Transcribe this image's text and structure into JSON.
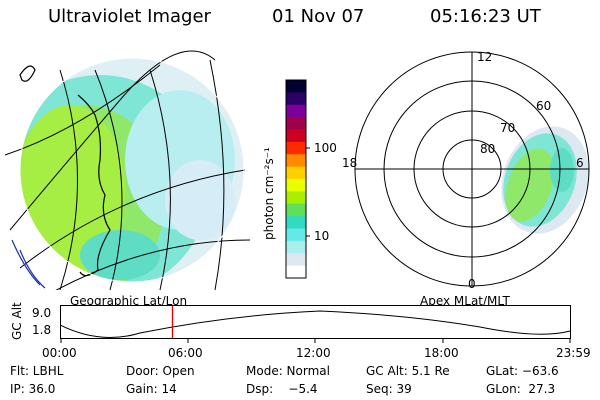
{
  "header": {
    "title": "Ultraviolet Imager",
    "date": "01 Nov 07",
    "time": "05:16:23 UT"
  },
  "left_panel": {
    "caption": "Geographic Lat/Lon"
  },
  "right_panel": {
    "caption": "Apex MLat/MLT",
    "mlt_labels": [
      "12",
      "18",
      "6",
      "0"
    ],
    "lat_labels": [
      "80",
      "70",
      "60"
    ]
  },
  "colorbar": {
    "unit_label": "photon cm⁻²s⁻¹",
    "ticks": [
      "100",
      "10"
    ],
    "colors": [
      "#000033",
      "#2a0066",
      "#7a0099",
      "#a0004a",
      "#cc0022",
      "#ff2a00",
      "#ff8a00",
      "#ffd000",
      "#e8ff00",
      "#a8f000",
      "#60e05a",
      "#2fdcbf",
      "#66e8e8",
      "#aaeeee",
      "#dde8f2",
      "#ffffff"
    ]
  },
  "timeline": {
    "ylabel": "GC Alt",
    "ymax": "9.0",
    "ymin": "1.8",
    "ticks": [
      "00:00",
      "06:00",
      "12:00",
      "18:00",
      "23:59"
    ],
    "marker_time": "05:16",
    "marker_fraction": 0.219
  },
  "info": {
    "row1": [
      "Flt: LBHL",
      "Door: Open",
      "Mode: Normal",
      "GC Alt: 5.1 Re",
      "GLat: −63.6"
    ],
    "row2": [
      "IP: 36.0",
      "Gain: 14",
      "Dsp:    −5.4",
      "Seq: 39",
      "GLon:  27.3"
    ]
  }
}
